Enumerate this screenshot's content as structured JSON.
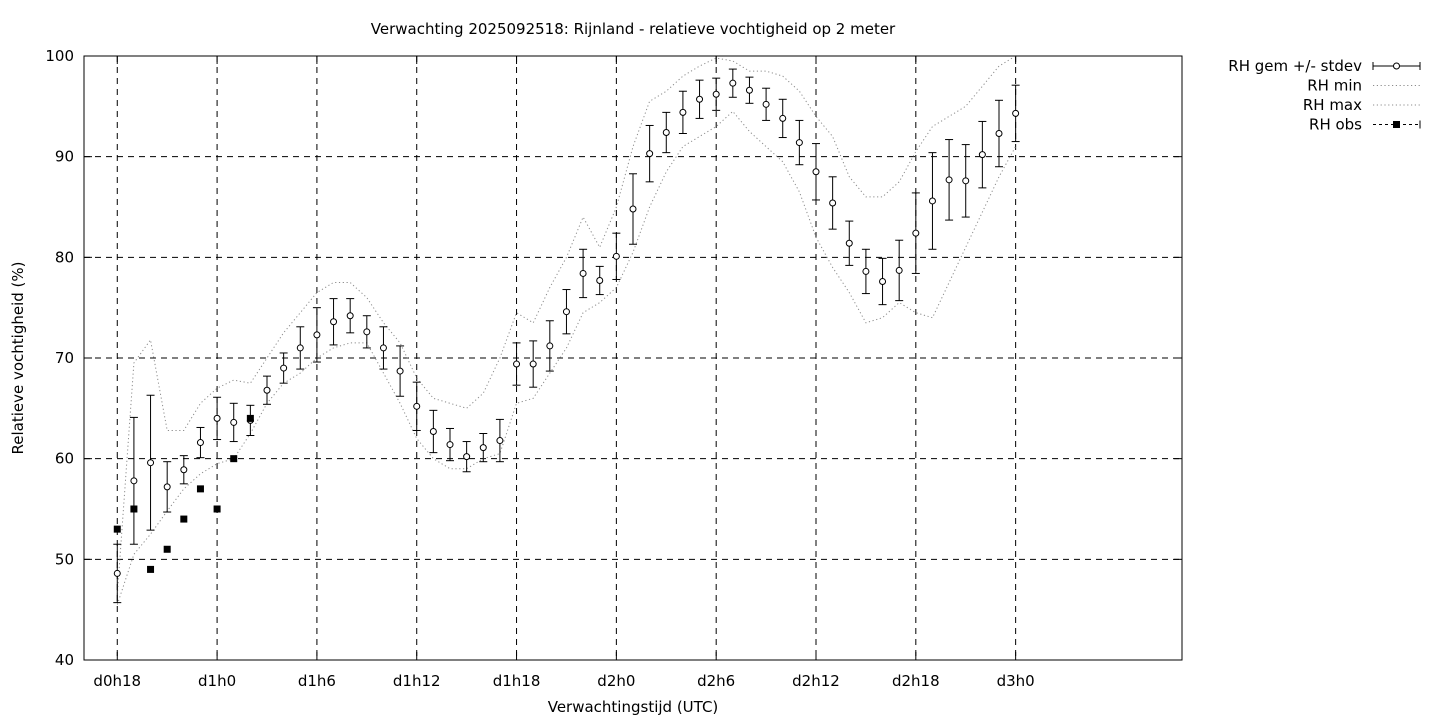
{
  "chart_data": {
    "type": "line",
    "title": "Verwachting 2025092518: Rijnland - relatieve vochtigheid op 2 meter",
    "xlabel": "Verwachtingstijd (UTC)",
    "ylabel": "Relatieve vochtigheid (%)",
    "xlim": [
      16,
      82
    ],
    "ylim": [
      40,
      100
    ],
    "grid": true,
    "legend_position": "outside-right-top",
    "x_ticks": [
      {
        "x": 18,
        "label": "d0h18"
      },
      {
        "x": 24,
        "label": "d1h0"
      },
      {
        "x": 30,
        "label": "d1h6"
      },
      {
        "x": 36,
        "label": "d1h12"
      },
      {
        "x": 42,
        "label": "d1h18"
      },
      {
        "x": 48,
        "label": "d2h0"
      },
      {
        "x": 54,
        "label": "d2h6"
      },
      {
        "x": 60,
        "label": "d2h12"
      },
      {
        "x": 66,
        "label": "d2h18"
      },
      {
        "x": 72,
        "label": "d3h0"
      }
    ],
    "y_ticks": [
      40,
      50,
      60,
      70,
      80,
      90,
      100
    ],
    "series": [
      {
        "name": "RH gem +/- stdev",
        "style": "errorbars",
        "x": [
          18,
          19,
          20,
          21,
          22,
          23,
          24,
          25,
          26,
          27,
          28,
          29,
          30,
          31,
          32,
          33,
          34,
          35,
          36,
          37,
          38,
          39,
          40,
          41,
          42,
          43,
          44,
          45,
          46,
          47,
          48,
          49,
          50,
          51,
          52,
          53,
          54,
          55,
          56,
          57,
          58,
          59,
          60,
          61,
          62,
          63,
          64,
          65,
          66,
          67,
          68,
          69,
          70,
          71,
          72
        ],
        "mean": [
          48.6,
          57.8,
          59.6,
          57.2,
          58.9,
          61.6,
          64.0,
          63.6,
          63.8,
          66.8,
          69.0,
          71.0,
          72.3,
          73.6,
          74.2,
          72.6,
          71.0,
          68.7,
          65.2,
          62.7,
          61.4,
          60.2,
          61.1,
          61.8,
          69.4,
          69.4,
          71.2,
          74.6,
          78.4,
          77.7,
          80.1,
          84.8,
          90.3,
          92.4,
          94.4,
          95.7,
          96.2,
          97.3,
          96.6,
          95.2,
          93.8,
          91.4,
          88.5,
          85.4,
          81.4,
          78.6,
          77.6,
          78.7,
          82.4,
          85.6,
          87.7,
          87.6,
          90.2,
          92.3,
          94.3
        ],
        "stdev": [
          2.9,
          6.3,
          6.7,
          2.5,
          1.4,
          1.5,
          2.1,
          1.9,
          1.5,
          1.4,
          1.5,
          2.1,
          2.7,
          2.3,
          1.7,
          1.6,
          2.1,
          2.5,
          2.4,
          2.1,
          1.6,
          1.5,
          1.4,
          2.1,
          2.1,
          2.3,
          2.5,
          2.2,
          2.4,
          1.4,
          2.3,
          3.5,
          2.8,
          2.0,
          2.1,
          1.9,
          1.6,
          1.4,
          1.3,
          1.6,
          1.9,
          2.2,
          2.8,
          2.6,
          2.2,
          2.2,
          2.3,
          3.0,
          4.0,
          4.8,
          4.0,
          3.6,
          3.3,
          3.3,
          2.8
        ]
      },
      {
        "name": "RH min",
        "style": "dotted",
        "x": [
          18,
          19,
          20,
          21,
          22,
          23,
          24,
          25,
          26,
          27,
          28,
          29,
          30,
          31,
          32,
          33,
          34,
          35,
          36,
          37,
          38,
          39,
          40,
          41,
          42,
          43,
          44,
          45,
          46,
          47,
          48,
          49,
          50,
          51,
          52,
          53,
          54,
          55,
          56,
          57,
          58,
          59,
          60,
          61,
          62,
          63,
          64,
          65,
          66,
          67,
          68,
          69,
          70,
          71,
          72
        ],
        "values": [
          45.5,
          50.5,
          52.5,
          54.8,
          57.0,
          58.5,
          59.5,
          60.0,
          62.5,
          65.5,
          67.5,
          68.5,
          70.0,
          71.0,
          71.5,
          71.5,
          68.5,
          65.5,
          62.0,
          60.0,
          59.0,
          59.0,
          60.0,
          60.5,
          65.5,
          66.0,
          68.5,
          71.0,
          74.5,
          75.5,
          77.0,
          80.5,
          85.0,
          88.5,
          91.0,
          92.0,
          93.0,
          94.5,
          92.5,
          91.0,
          89.5,
          86.5,
          82.0,
          79.0,
          76.5,
          73.5,
          74.0,
          75.5,
          74.5,
          74.0,
          77.5,
          81.0,
          84.5,
          88.0,
          91.0
        ]
      },
      {
        "name": "RH max",
        "style": "dotted",
        "x": [
          18,
          19,
          20,
          21,
          22,
          23,
          24,
          25,
          26,
          27,
          28,
          29,
          30,
          31,
          32,
          33,
          34,
          35,
          36,
          37,
          38,
          39,
          40,
          41,
          42,
          43,
          44,
          45,
          46,
          47,
          48,
          49,
          50,
          51,
          52,
          53,
          54,
          55,
          56,
          57,
          58,
          59,
          60,
          61,
          62,
          63,
          64,
          65,
          66,
          67,
          68,
          69,
          70,
          71,
          72
        ],
        "values": [
          46.5,
          69.5,
          71.8,
          62.8,
          62.8,
          65.5,
          67.0,
          67.8,
          67.5,
          70.0,
          72.5,
          74.5,
          76.5,
          77.5,
          77.5,
          76.0,
          73.5,
          71.5,
          68.0,
          66.0,
          65.5,
          65.0,
          66.5,
          70.0,
          74.5,
          73.5,
          77.0,
          80.0,
          84.0,
          81.0,
          85.0,
          91.0,
          95.5,
          96.5,
          98.0,
          99.0,
          99.8,
          99.5,
          98.5,
          98.5,
          98.0,
          96.5,
          94.0,
          92.0,
          88.0,
          86.0,
          86.0,
          87.5,
          90.5,
          93.0,
          94.0,
          95.0,
          97.0,
          99.0,
          100.0
        ]
      },
      {
        "name": "RH obs",
        "style": "squares",
        "x": [
          18,
          19,
          20,
          21,
          22,
          23,
          24,
          25,
          26
        ],
        "values": [
          53,
          55,
          49,
          51,
          54,
          57,
          55,
          60,
          64
        ]
      }
    ]
  }
}
